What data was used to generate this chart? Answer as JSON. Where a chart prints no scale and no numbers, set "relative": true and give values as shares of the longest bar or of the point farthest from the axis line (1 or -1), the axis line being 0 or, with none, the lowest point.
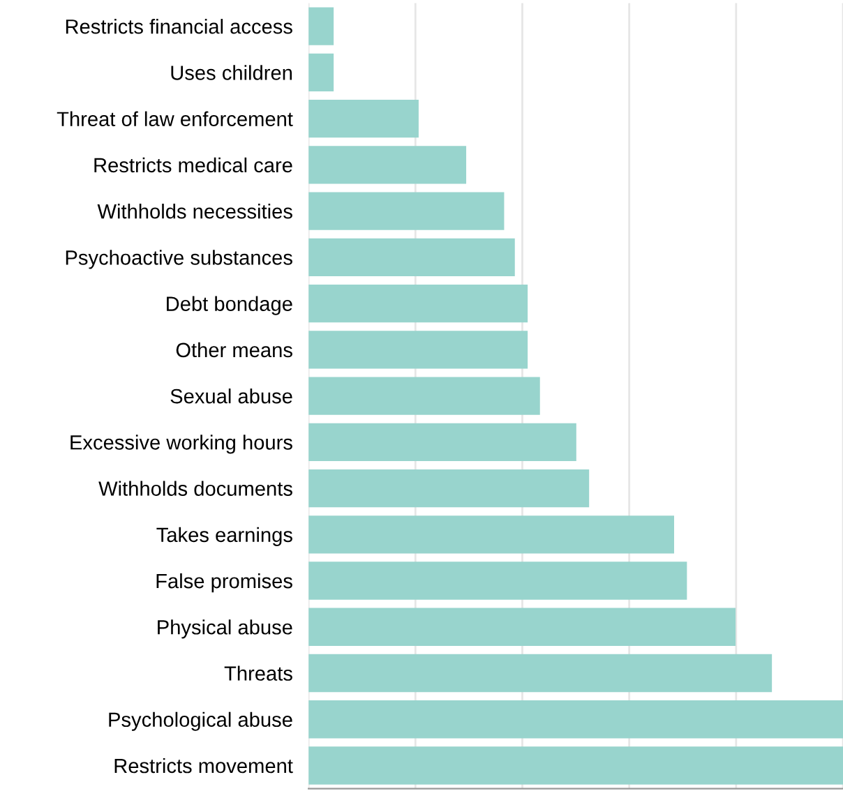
{
  "chart_data": {
    "type": "bar",
    "orientation": "horizontal",
    "relative": true,
    "grid": "x",
    "color": "#98d4cd",
    "categories": [
      "Restricts financial access",
      "Uses children",
      "Threat of law enforcement",
      "Restricts medical care",
      "Withholds necessities",
      "Psychoactive substances",
      "Debt bondage",
      "Other means",
      "Sexual abuse",
      "Excessive working hours",
      "Withholds documents",
      "Takes earnings",
      "False promises",
      "Physical abuse",
      "Threats",
      "Psychological abuse",
      "Restricts movement"
    ],
    "values": [
      0.047,
      0.047,
      0.206,
      0.295,
      0.366,
      0.386,
      0.41,
      0.41,
      0.433,
      0.501,
      0.525,
      0.684,
      0.708,
      0.799,
      0.867,
      1,
      1
    ]
  }
}
